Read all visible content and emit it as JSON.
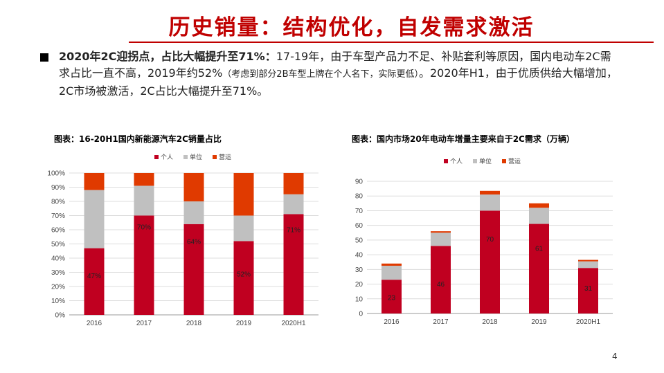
{
  "slide": {
    "title": "历史销量：结构优化，自发需求激活",
    "para_bold": "2020年2C迎拐点，占比大幅提升至71%：",
    "para_1": "17-19年，由于车型产品力不足、补贴套利等原因，国内电动车2C需求占比一直不高，2019年约52%",
    "para_small": "（考虑到部分2B车型上牌在个人名下，实际更低）",
    "para_2": "。2020年H1，由于优质供给大幅增加，2C市场被激活，2C占比大幅提升至71%。",
    "page_number": "4"
  },
  "chart_data": [
    {
      "type": "bar",
      "stacked": true,
      "title": "图表：16-20H1国内新能源汽车2C销量占比",
      "categories": [
        "2016",
        "2017",
        "2018",
        "2019",
        "2020H1"
      ],
      "series": [
        {
          "name": "个人",
          "color": "#c00020",
          "values": [
            47,
            70,
            64,
            52,
            71
          ],
          "labels": [
            "47%",
            "70%",
            "64%",
            "52%",
            "71%"
          ]
        },
        {
          "name": "单位",
          "color": "#c0c0c0",
          "values": [
            41,
            21,
            16,
            18,
            14
          ]
        },
        {
          "name": "营运",
          "color": "#e03a00",
          "values": [
            12,
            9,
            20,
            30,
            15
          ]
        }
      ],
      "ylim": [
        0,
        100
      ],
      "yticks": [
        "0%",
        "10%",
        "20%",
        "30%",
        "40%",
        "50%",
        "60%",
        "70%",
        "80%",
        "90%",
        "100%"
      ],
      "legend": "top-center",
      "grid": true
    },
    {
      "type": "bar",
      "stacked": true,
      "title": "图表：国内市场20年电动车增量主要来自于2C需求（万辆）",
      "categories": [
        "2016",
        "2017",
        "2018",
        "2019",
        "2020H1"
      ],
      "series": [
        {
          "name": "个人",
          "color": "#c00020",
          "values": [
            23,
            46,
            70,
            61,
            31
          ],
          "labels": [
            "23",
            "46",
            "70",
            "61",
            "31"
          ]
        },
        {
          "name": "单位",
          "color": "#c0c0c0",
          "values": [
            9.5,
            9,
            11,
            11,
            4.5
          ]
        },
        {
          "name": "营运",
          "color": "#e03a00",
          "values": [
            1.5,
            1,
            2.5,
            3,
            1
          ]
        }
      ],
      "ylim": [
        0,
        90
      ],
      "yticks": [
        "0",
        "10",
        "20",
        "30",
        "40",
        "50",
        "60",
        "70",
        "80",
        "90"
      ],
      "legend": "top-center",
      "grid": true
    }
  ]
}
